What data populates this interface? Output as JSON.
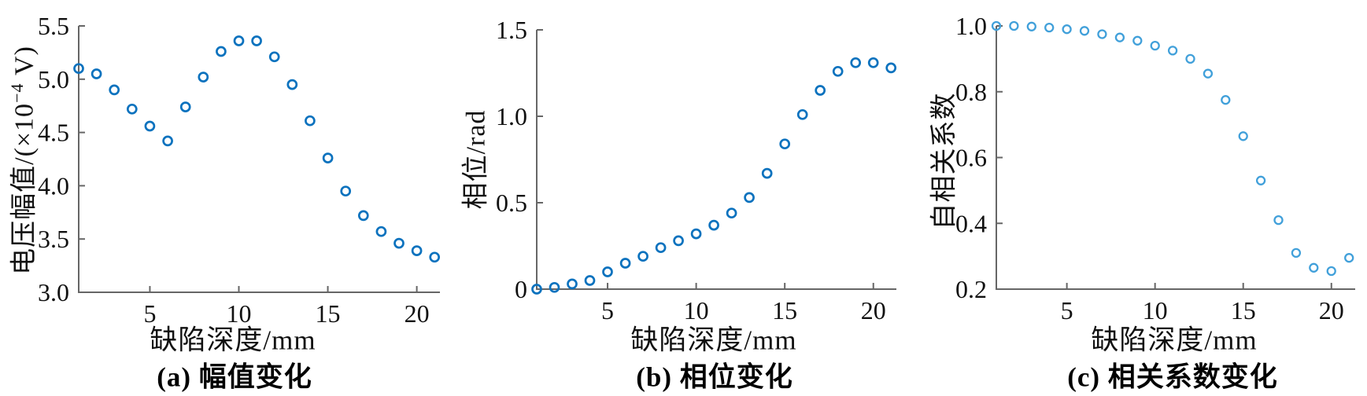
{
  "figure": {
    "background": "#ffffff",
    "axis_color": "#666666",
    "tick_label_color": "#111111"
  },
  "chart_data": [
    {
      "id": "a",
      "type": "scatter",
      "caption": "(a) 幅值变化",
      "xlabel": "缺陷深度/mm",
      "ylabel": "电压幅值/(×10⁻⁴ V)",
      "ylabel_parts": {
        "prefix": "电压幅值/(×10",
        "sup": "−4",
        "suffix": " V)"
      },
      "marker": "open-circle",
      "marker_color": "#0b72be",
      "x": [
        1,
        2,
        3,
        4,
        5,
        6,
        7,
        8,
        9,
        10,
        11,
        12,
        13,
        14,
        15,
        16,
        17,
        18,
        19,
        20,
        21
      ],
      "y": [
        5.1,
        5.05,
        4.9,
        4.72,
        4.56,
        4.42,
        4.74,
        5.02,
        5.26,
        5.36,
        5.36,
        5.21,
        4.95,
        4.61,
        4.26,
        3.95,
        3.72,
        3.57,
        3.46,
        3.39,
        3.33
      ],
      "xlim": [
        1,
        21.3
      ],
      "ylim": [
        3.0,
        5.5
      ],
      "xticks": [
        5,
        10,
        15,
        20
      ],
      "ytick_labels": [
        "3.0",
        "3.5",
        "4.0",
        "4.5",
        "5.0",
        "5.5"
      ],
      "grid": false,
      "legend": "none"
    },
    {
      "id": "b",
      "type": "scatter",
      "caption": "(b) 相位变化",
      "xlabel": "缺陷深度/mm",
      "ylabel": "相位/rad",
      "marker": "open-circle",
      "marker_color": "#0b72be",
      "x": [
        1,
        2,
        3,
        4,
        5,
        6,
        7,
        8,
        9,
        10,
        11,
        12,
        13,
        14,
        15,
        16,
        17,
        18,
        19,
        20,
        21
      ],
      "y": [
        0.0,
        0.01,
        0.03,
        0.05,
        0.1,
        0.15,
        0.19,
        0.24,
        0.28,
        0.32,
        0.37,
        0.44,
        0.53,
        0.67,
        0.84,
        1.01,
        1.15,
        1.26,
        1.31,
        1.31,
        1.28
      ],
      "xlim": [
        1,
        21.3
      ],
      "ylim": [
        0,
        1.5
      ],
      "xticks": [
        5,
        10,
        15,
        20
      ],
      "ytick_labels": [
        "0",
        "0.5",
        "1.0",
        "1.5"
      ],
      "grid": false,
      "legend": "none"
    },
    {
      "id": "c",
      "type": "scatter",
      "caption": "(c) 相关系数变化",
      "xlabel": "缺陷深度/mm",
      "ylabel": "自相关系数",
      "marker": "open-circle",
      "marker_color": "#41a0da",
      "x": [
        1,
        2,
        3,
        4,
        5,
        6,
        7,
        8,
        9,
        10,
        11,
        12,
        13,
        14,
        15,
        16,
        17,
        18,
        19,
        20,
        21
      ],
      "y": [
        1.0,
        1.0,
        0.998,
        0.995,
        0.99,
        0.985,
        0.975,
        0.965,
        0.955,
        0.94,
        0.925,
        0.9,
        0.855,
        0.775,
        0.665,
        0.53,
        0.41,
        0.31,
        0.265,
        0.255,
        0.295
      ],
      "xlim": [
        1,
        21.35
      ],
      "ylim": [
        0.2,
        1.0
      ],
      "xticks": [
        5,
        10,
        15,
        20
      ],
      "ytick_labels": [
        "0.2",
        "0.4",
        "0.6",
        "0.8",
        "1.0"
      ],
      "grid": false,
      "legend": "none"
    }
  ]
}
